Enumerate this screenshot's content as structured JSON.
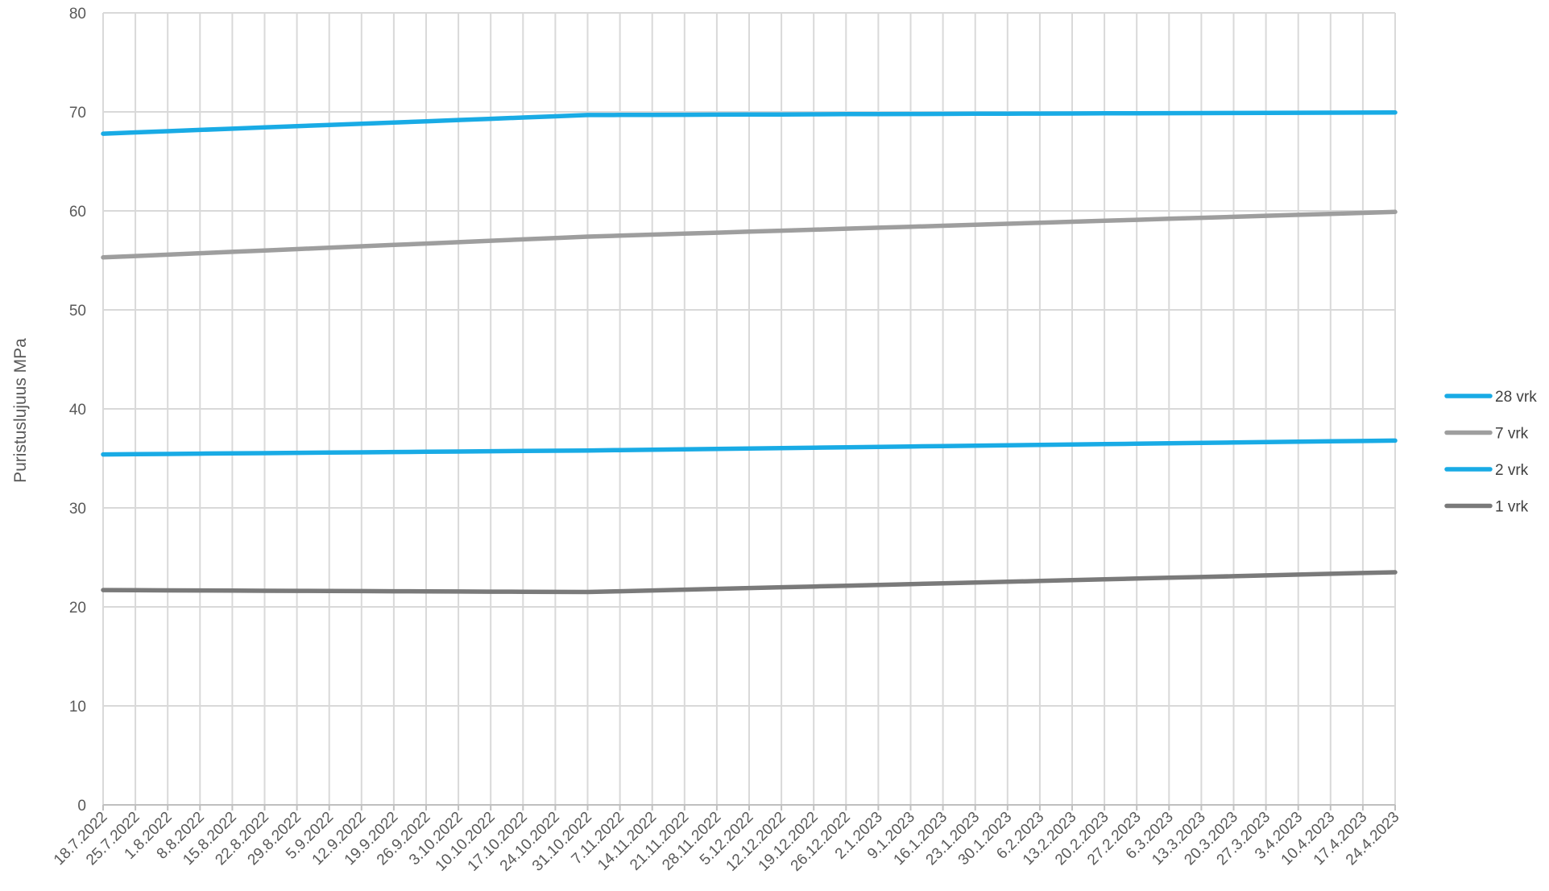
{
  "chart_data": {
    "type": "line",
    "title": "",
    "xlabel": "",
    "ylabel": "Puristuslujuus MPa",
    "ylim": [
      0,
      80
    ],
    "yticks": [
      0,
      10,
      20,
      30,
      40,
      50,
      60,
      70,
      80
    ],
    "grid": "vertical and horizontal gridlines",
    "legend_position": "right",
    "categories": [
      "18.7.2022",
      "25.7.2022",
      "1.8.2022",
      "8.8.2022",
      "15.8.2022",
      "22.8.2022",
      "29.8.2022",
      "5.9.2022",
      "12.9.2022",
      "19.9.2022",
      "26.9.2022",
      "3.10.2022",
      "10.10.2022",
      "17.10.2022",
      "24.10.2022",
      "31.10.2022",
      "7.11.2022",
      "14.11.2022",
      "21.11.2022",
      "28.11.2022",
      "5.12.2022",
      "12.12.2022",
      "19.12.2022",
      "26.12.2022",
      "2.1.2023",
      "9.1.2023",
      "16.1.2023",
      "23.1.2023",
      "30.1.2023",
      "6.2.2023",
      "13.2.2023",
      "20.2.2023",
      "27.2.2023",
      "6.3.2023",
      "13.3.2023",
      "20.3.2023",
      "27.3.2023",
      "3.4.2023",
      "10.4.2023",
      "17.4.2023",
      "24.4.2023"
    ],
    "series": [
      {
        "name": "28 vrk",
        "color": "#19ABE5",
        "values": [
          67.8,
          67.93,
          68.05,
          68.18,
          68.3,
          68.43,
          68.55,
          68.68,
          68.8,
          68.93,
          69.05,
          69.18,
          69.3,
          69.43,
          69.55,
          69.68,
          69.69,
          69.7,
          69.71,
          69.72,
          69.73,
          69.74,
          69.76,
          69.77,
          69.78,
          69.79,
          69.8,
          69.81,
          69.82,
          69.83,
          69.84,
          69.85,
          69.86,
          69.87,
          69.88,
          69.89,
          69.9,
          69.91,
          69.92,
          69.93,
          69.94
        ]
      },
      {
        "name": "7 vrk",
        "color": "#9E9E9E",
        "values": [
          55.3,
          55.44,
          55.58,
          55.72,
          55.86,
          56.0,
          56.14,
          56.28,
          56.42,
          56.56,
          56.7,
          56.84,
          56.98,
          57.12,
          57.26,
          57.4,
          57.5,
          57.6,
          57.7,
          57.8,
          57.9,
          58.0,
          58.1,
          58.2,
          58.3,
          58.4,
          58.5,
          58.6,
          58.7,
          58.8,
          58.9,
          59.0,
          59.1,
          59.2,
          59.3,
          59.4,
          59.5,
          59.6,
          59.7,
          59.8,
          59.9
        ]
      },
      {
        "name": "2 vrk",
        "color": "#19ABE5",
        "values": [
          35.4,
          35.43,
          35.45,
          35.48,
          35.51,
          35.53,
          35.56,
          35.59,
          35.61,
          35.64,
          35.67,
          35.69,
          35.72,
          35.75,
          35.77,
          35.8,
          35.84,
          35.88,
          35.92,
          35.96,
          36.0,
          36.04,
          36.08,
          36.12,
          36.16,
          36.2,
          36.24,
          36.28,
          36.32,
          36.36,
          36.4,
          36.44,
          36.48,
          36.52,
          36.56,
          36.6,
          36.64,
          36.68,
          36.72,
          36.76,
          36.8
        ]
      },
      {
        "name": "1 vrk",
        "color": "#7A7A7A",
        "values": [
          21.7,
          21.69,
          21.67,
          21.66,
          21.65,
          21.63,
          21.62,
          21.61,
          21.59,
          21.58,
          21.57,
          21.55,
          21.54,
          21.53,
          21.51,
          21.5,
          21.58,
          21.66,
          21.74,
          21.82,
          21.9,
          21.98,
          22.06,
          22.14,
          22.22,
          22.3,
          22.38,
          22.46,
          22.54,
          22.62,
          22.7,
          22.78,
          22.86,
          22.94,
          23.02,
          23.1,
          23.18,
          23.26,
          23.34,
          23.42,
          23.5
        ]
      }
    ]
  }
}
